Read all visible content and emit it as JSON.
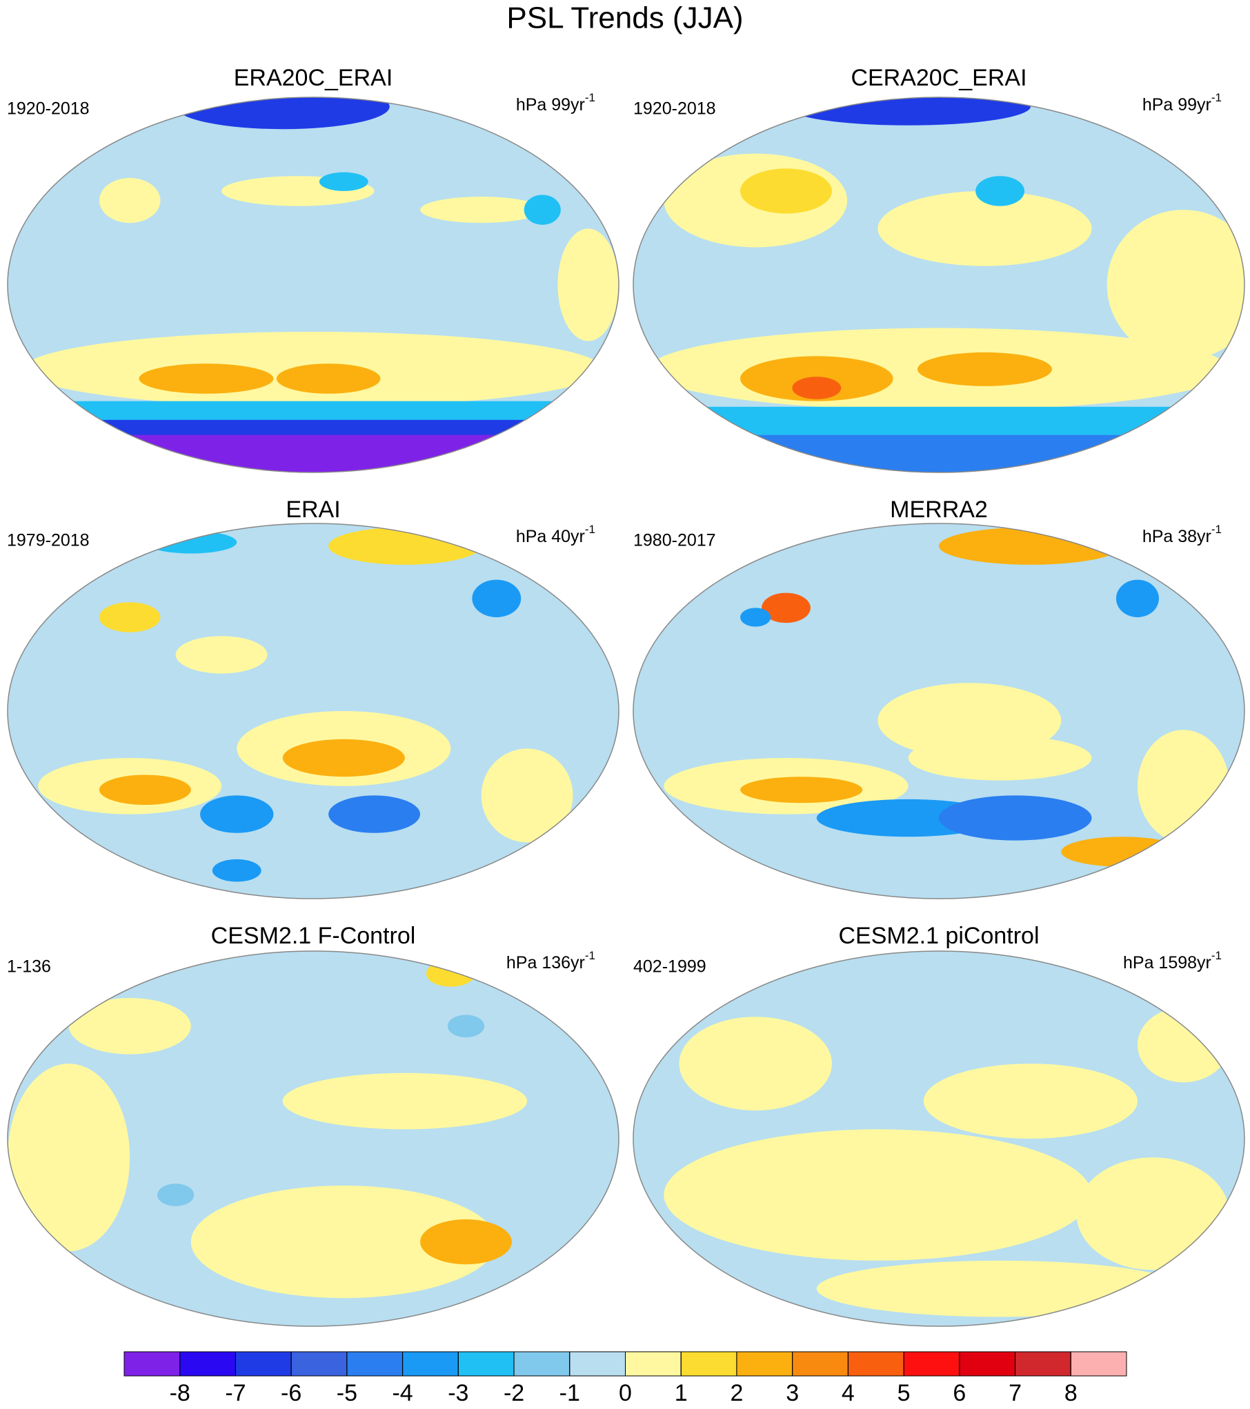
{
  "header": {
    "title": "PSL Trends (JJA)"
  },
  "panels": [
    {
      "title": "ERA20C_ERAI",
      "period": "1920-2018",
      "units": "hPa 99yr",
      "units_sup": "-1"
    },
    {
      "title": "CERA20C_ERAI",
      "period": "1920-2018",
      "units": "hPa 99yr",
      "units_sup": "-1"
    },
    {
      "title": "ERAI",
      "period": "1979-2018",
      "units": "hPa 40yr",
      "units_sup": "-1"
    },
    {
      "title": "MERRA2",
      "period": "1980-2017",
      "units": "hPa 38yr",
      "units_sup": "-1"
    },
    {
      "title": "CESM2.1 F-Control",
      "period": "1-136",
      "units": "hPa 136yr",
      "units_sup": "-1"
    },
    {
      "title": "CESM2.1 piControl",
      "period": "402-1999",
      "units": "hPa 1598yr",
      "units_sup": "-1"
    }
  ],
  "colorbar": {
    "levels": [
      -8,
      -7,
      -6,
      -5,
      -4,
      -3,
      -2,
      -1,
      0,
      1,
      2,
      3,
      4,
      5,
      6,
      7,
      8
    ],
    "colors": [
      "#7f22e8",
      "#2a08f2",
      "#1f3be6",
      "#3a63e0",
      "#2a7ef0",
      "#1a9af5",
      "#20c0f5",
      "#80c8ec",
      "#b8def0",
      "#fff8a0",
      "#fcdc30",
      "#fbb010",
      "#f88a10",
      "#f86010",
      "#fe1010",
      "#e00010",
      "#d0282c",
      "#fcb0b0"
    ]
  }
}
